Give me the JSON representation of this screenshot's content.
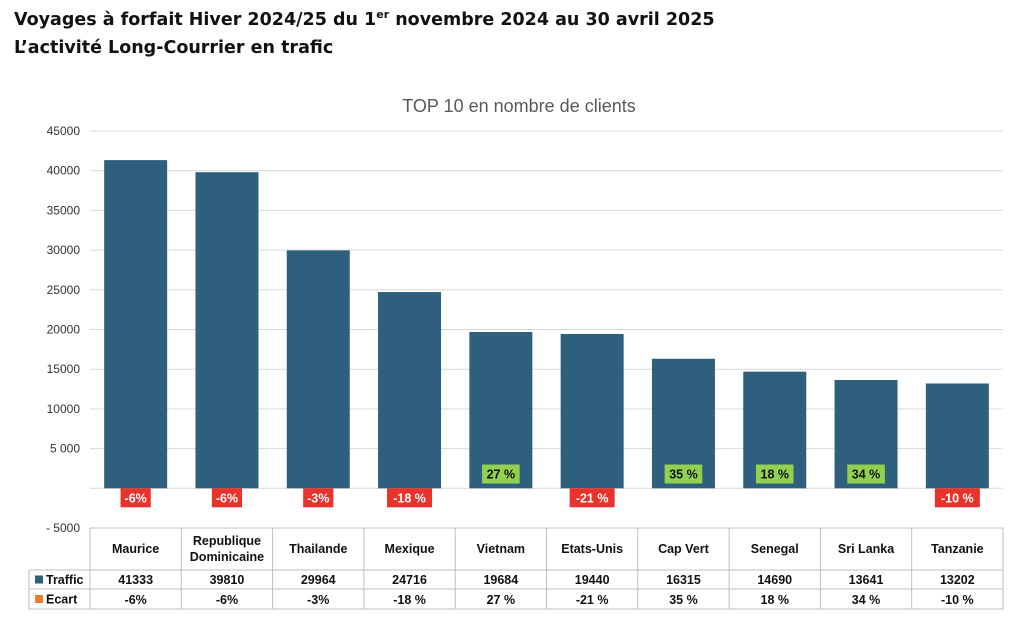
{
  "header": {
    "title_line1_pre": "Voyages à forfait Hiver 2024/25 du 1",
    "title_line1_sup": "er",
    "title_line1_post": " novembre 2024 au 30 avril 2025",
    "title_line2": "L’activité Long-Courrier en trafic"
  },
  "colors": {
    "traffic": "#2e5f7d",
    "ecart_legend": "#ed7d31",
    "positive_label_bg": "#92d050",
    "negative_label_bg": "#e8322b",
    "grid": "#d9d9d9",
    "table_border": "#bfbfbf"
  },
  "chart_data": {
    "type": "bar",
    "title": "TOP 10 en nombre de clients",
    "categories": [
      "Maurice",
      "Republique Dominicaine",
      "Thailande",
      "Mexique",
      "Vietnam",
      "Etats-Unis",
      "Cap Vert",
      "Senegal",
      "Sri Lanka",
      "Tanzanie"
    ],
    "category_lines": [
      [
        "Maurice"
      ],
      [
        "Republique",
        "Dominicaine"
      ],
      [
        "Thailande"
      ],
      [
        "Mexique"
      ],
      [
        "Vietnam"
      ],
      [
        "Etats-Unis"
      ],
      [
        "Cap Vert"
      ],
      [
        "Senegal"
      ],
      [
        "Sri Lanka"
      ],
      [
        "Tanzanie"
      ]
    ],
    "series": [
      {
        "name": "Traffic",
        "values": [
          41333,
          39810,
          29964,
          24716,
          19684,
          19440,
          16315,
          14690,
          13641,
          13202
        ],
        "color": "#2e5f7d"
      },
      {
        "name": "Ecart",
        "values": [
          -6,
          -6,
          -3,
          -18,
          27,
          -21,
          35,
          18,
          34,
          -10
        ],
        "color": "#ed7d31"
      }
    ],
    "ecart_labels": [
      "-6%",
      "-6%",
      "-3%",
      "-18 %",
      "27 %",
      "-21 %",
      "35 %",
      "18 %",
      "34 %",
      "-10 %"
    ],
    "ylim": [
      -5000,
      45000
    ],
    "yticks": [
      -5000,
      0,
      5000,
      10000,
      15000,
      20000,
      25000,
      30000,
      35000,
      40000,
      45000
    ],
    "ytick_labels": [
      "- 5000",
      "",
      "5 000",
      "10000",
      "15000",
      "20000",
      "25000",
      "30000",
      "35000",
      "40000",
      "45000"
    ],
    "grid": true,
    "data_table": true
  }
}
